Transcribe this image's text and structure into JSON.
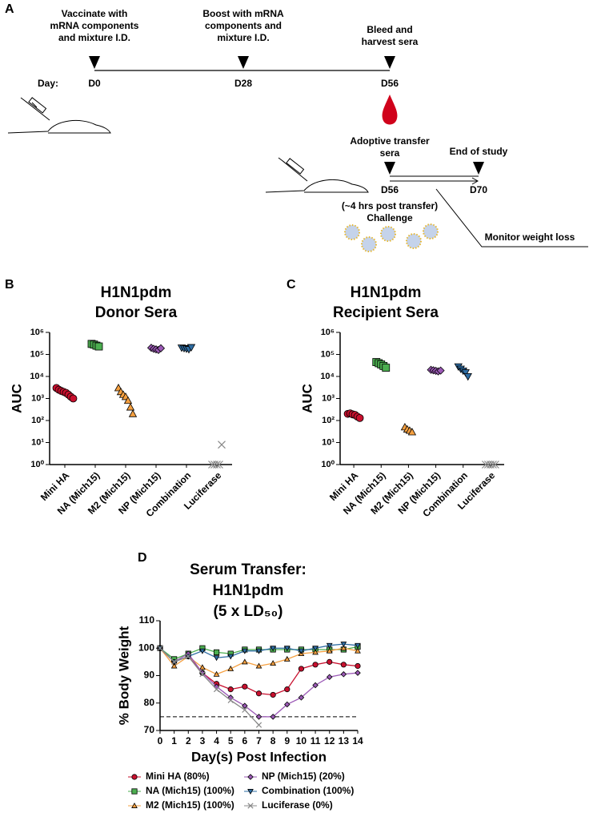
{
  "panel_labels": [
    "A",
    "B",
    "C",
    "D"
  ],
  "diagram": {
    "steps": [
      {
        "label": [
          "Vaccinate with",
          "mRNA components",
          "and mixture I.D."
        ],
        "day": "D0"
      },
      {
        "label": [
          "Boost with mRNA",
          "components and",
          "mixture I.D."
        ],
        "day": "D28"
      },
      {
        "label": [
          "Bleed and",
          "harvest sera"
        ],
        "day": "D56"
      }
    ],
    "day_label": "Day:",
    "transfer": {
      "label": [
        "Adoptive transfer",
        "sera"
      ],
      "day": "D56"
    },
    "end": {
      "label": "End of study",
      "day": "D70"
    },
    "challenge": [
      "(~4 hrs post transfer)",
      "Challenge"
    ],
    "monitor": "Monitor weight loss"
  },
  "chart_data": [
    {
      "type": "dot",
      "title": [
        "H1N1pdm",
        "Donor Sera"
      ],
      "y_label": "AUC",
      "log_y": true,
      "categories": [
        "Mini HA",
        "NA (Mich15)",
        "M2 (Mich15)",
        "NP (Mich15)",
        "Combination",
        "Luciferase"
      ],
      "colors": [
        "#c8102e",
        "#4caf50",
        "#f5a040",
        "#9b59b6",
        "#2e6da4",
        "#888888"
      ],
      "markers": [
        "circle",
        "square",
        "triangle",
        "diamond",
        "down",
        "x"
      ],
      "values": [
        [
          3000,
          2500,
          2200,
          2000,
          1800,
          1500,
          1200,
          1000
        ],
        [
          300000,
          280000,
          250000,
          230000
        ],
        [
          3000,
          2000,
          1500,
          1200,
          800,
          400,
          200
        ],
        [
          200000,
          180000,
          170000,
          160000,
          190000
        ],
        [
          200000,
          190000,
          180000,
          170000,
          210000
        ],
        [
          1,
          1,
          1,
          1,
          8
        ]
      ],
      "ylim": [
        1,
        1000000
      ],
      "yticks": [
        {
          "value": 1,
          "label": "10⁰"
        },
        {
          "value": 10,
          "label": "10¹"
        },
        {
          "value": 100,
          "label": "10²"
        },
        {
          "value": 1000,
          "label": "10³"
        },
        {
          "value": 10000,
          "label": "10⁴"
        },
        {
          "value": 100000,
          "label": "10⁵"
        },
        {
          "value": 1000000,
          "label": "10⁶"
        }
      ]
    },
    {
      "type": "dot",
      "title": [
        "H1N1pdm",
        "Recipient Sera"
      ],
      "y_label": "AUC",
      "log_y": true,
      "categories": [
        "Mini HA",
        "NA (Mich15)",
        "M2 (Mich15)",
        "NP (Mich15)",
        "Combination",
        "Luciferase"
      ],
      "colors": [
        "#c8102e",
        "#4caf50",
        "#f5a040",
        "#9b59b6",
        "#2e6da4",
        "#888888"
      ],
      "markers": [
        "circle",
        "square",
        "triangle",
        "diamond",
        "down",
        "x"
      ],
      "values": [
        [
          200,
          210,
          190,
          180,
          150,
          130
        ],
        [
          45000,
          40000,
          35000,
          30000,
          25000
        ],
        [
          50,
          40,
          35,
          30
        ],
        [
          20000,
          19000,
          18000,
          17000,
          18500
        ],
        [
          28000,
          22000,
          18000,
          15000,
          10000
        ],
        [
          1,
          1,
          1,
          1,
          1
        ]
      ],
      "ylim": [
        1,
        1000000
      ],
      "yticks": [
        {
          "value": 1,
          "label": "10⁰"
        },
        {
          "value": 10,
          "label": "10¹"
        },
        {
          "value": 100,
          "label": "10²"
        },
        {
          "value": 1000,
          "label": "10³"
        },
        {
          "value": 10000,
          "label": "10⁴"
        },
        {
          "value": 100000,
          "label": "10⁵"
        },
        {
          "value": 1000000,
          "label": "10⁶"
        }
      ]
    },
    {
      "type": "line",
      "title": [
        "Serum Transfer:",
        "H1N1pdm",
        "(5 x LD₅₀)"
      ],
      "x_label": "Day(s) Post Infection",
      "y_label": "% Body Weight",
      "x": [
        0,
        1,
        2,
        3,
        4,
        5,
        6,
        7,
        8,
        9,
        10,
        11,
        12,
        13,
        14
      ],
      "xlim": [
        0,
        14
      ],
      "xticks": [
        0,
        1,
        2,
        3,
        4,
        5,
        6,
        7,
        8,
        9,
        10,
        11,
        12,
        13,
        14
      ],
      "ylim": [
        70,
        110
      ],
      "yticks": [
        70,
        80,
        90,
        100,
        110
      ],
      "threshold": 75,
      "series": [
        {
          "name": "Mini HA (80%)",
          "color": "#c8102e",
          "marker": "circle",
          "values": [
            100,
            95,
            97,
            91,
            87,
            85,
            86,
            83.5,
            83,
            85,
            92.5,
            94,
            95,
            94,
            93.5
          ]
        },
        {
          "name": "NA (Mich15) (100%)",
          "color": "#4caf50",
          "marker": "square",
          "values": [
            100,
            96,
            98,
            100,
            98.5,
            98,
            99.5,
            99.5,
            99.5,
            99.5,
            99.5,
            99.5,
            99.5,
            99.5,
            100.5
          ]
        },
        {
          "name": "M2 (Mich15) (100%)",
          "color": "#f5a040",
          "marker": "triangle",
          "values": [
            100,
            93.5,
            97,
            93,
            90.5,
            92.5,
            95,
            93.5,
            94.5,
            96,
            98,
            98.5,
            99,
            100,
            99
          ]
        },
        {
          "name": "NP (Mich15) (20%)",
          "color": "#9b59b6",
          "marker": "diamond",
          "values": [
            100,
            95,
            98,
            91,
            86,
            82,
            79,
            75,
            75,
            79.5,
            82,
            86.5,
            89.5,
            90.5,
            91
          ]
        },
        {
          "name": "Combination (100%)",
          "color": "#2e6da4",
          "marker": "down",
          "values": [
            100,
            95,
            97,
            99,
            96.5,
            97,
            99,
            99,
            100,
            100,
            99,
            100,
            101,
            101.5,
            101
          ]
        },
        {
          "name": "Luciferase (0%)",
          "color": "#888888",
          "marker": "x",
          "values": [
            100,
            95,
            97,
            90.5,
            85,
            81,
            77.5,
            72,
            null,
            null,
            null,
            null,
            null,
            null,
            null
          ]
        }
      ]
    }
  ]
}
